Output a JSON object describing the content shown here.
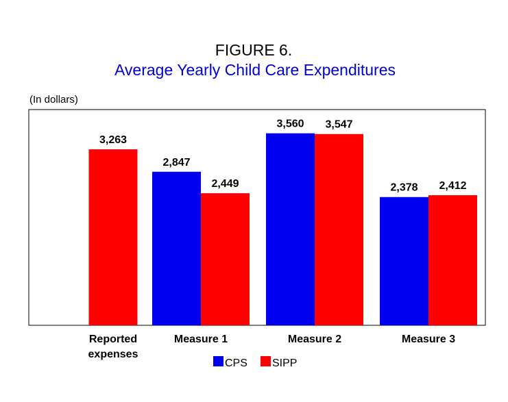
{
  "figure_label": "FIGURE 6.",
  "title": "Average Yearly Child Care Expenditures",
  "unit_note": "(In dollars)",
  "colors": {
    "cps": "#0000ee",
    "sipp": "#ff0000",
    "title": "#0000cc"
  },
  "legend": {
    "cps": "CPS",
    "sipp": "SIPP"
  },
  "chart_data": {
    "type": "bar",
    "title": "Average Yearly Child Care Expenditures",
    "ylabel": "(In dollars)",
    "xlabel": "",
    "ylim": [
      0,
      4000
    ],
    "grid": false,
    "legend_position": "bottom",
    "categories": [
      [
        "Reported",
        "expenses"
      ],
      [
        "Measure 1"
      ],
      [
        "Measure 2"
      ],
      [
        "Measure 3"
      ]
    ],
    "series": [
      {
        "name": "CPS",
        "values": [
          null,
          2847,
          3560,
          2378
        ],
        "labels": [
          "",
          "2,847",
          "3,560",
          "2,378"
        ]
      },
      {
        "name": "SIPP",
        "values": [
          3263,
          2449,
          3547,
          2412
        ],
        "labels": [
          "3,263",
          "2,449",
          "3,547",
          "2,412"
        ]
      }
    ]
  }
}
